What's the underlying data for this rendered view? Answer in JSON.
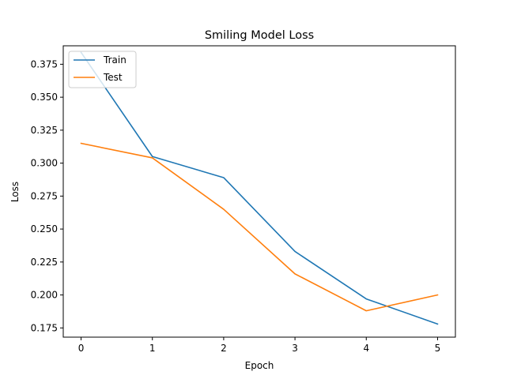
{
  "chart_data": {
    "type": "line",
    "title": "Smiling Model Loss",
    "xlabel": "Epoch",
    "ylabel": "Loss",
    "x": [
      0,
      1,
      2,
      3,
      4,
      5
    ],
    "xticks": [
      "0",
      "1",
      "2",
      "3",
      "4",
      "5"
    ],
    "yticks": [
      "0.175",
      "0.200",
      "0.225",
      "0.250",
      "0.275",
      "0.300",
      "0.325",
      "0.350",
      "0.375"
    ],
    "xlim": [
      -0.25,
      5.25
    ],
    "ylim": [
      0.168,
      0.389
    ],
    "grid": false,
    "legend_position": "upper-left",
    "series": [
      {
        "name": "Train",
        "color": "#1f77b4",
        "values": [
          0.384,
          0.305,
          0.289,
          0.233,
          0.197,
          0.178
        ]
      },
      {
        "name": "Test",
        "color": "#ff7f0e",
        "values": [
          0.315,
          0.304,
          0.265,
          0.216,
          0.188,
          0.2
        ]
      }
    ]
  }
}
